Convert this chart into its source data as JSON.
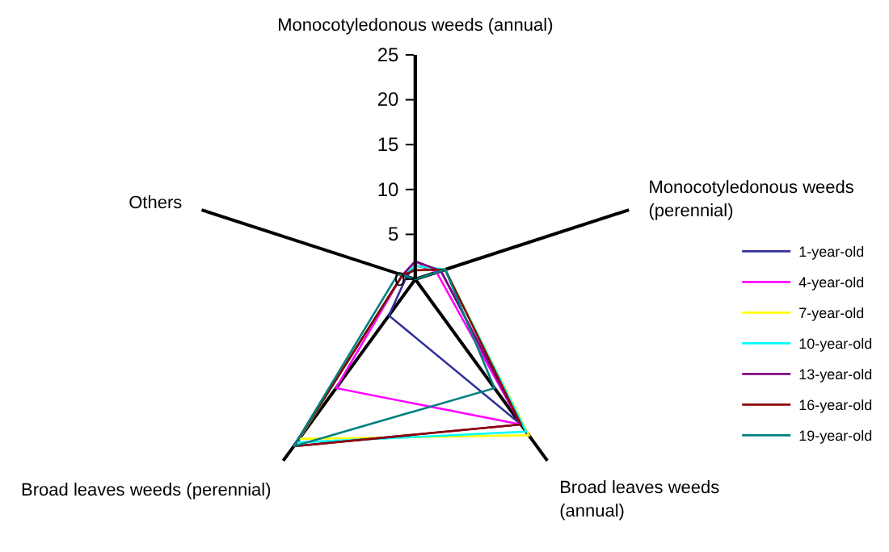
{
  "chart_data": {
    "type": "radar",
    "categories": [
      "Monocotyledonous weeds (annual)",
      "Monocotyledonous weeds (perennial)",
      "Broad leaves weeds (annual)",
      "Broad leaves weeds (perennial)",
      "Others"
    ],
    "ylim": [
      0,
      25
    ],
    "yticks": [
      0,
      5,
      10,
      15,
      20,
      25
    ],
    "legend": "right",
    "grid": false,
    "series": [
      {
        "name": "1-year-old",
        "color": "#333399",
        "values": [
          1.5,
          3,
          20,
          5,
          1
        ]
      },
      {
        "name": "4-year-old",
        "color": "#ff00ff",
        "values": [
          2,
          2.5,
          20,
          15,
          1.5
        ]
      },
      {
        "name": "7-year-old",
        "color": "#ffff00",
        "values": [
          1.5,
          3.5,
          21.5,
          22,
          1.5
        ]
      },
      {
        "name": "10-year-old",
        "color": "#00ffff",
        "values": [
          1.5,
          3.5,
          21,
          22.5,
          1.5
        ]
      },
      {
        "name": "13-year-old",
        "color": "#800080",
        "values": [
          2,
          3,
          20,
          23,
          1.5
        ]
      },
      {
        "name": "16-year-old",
        "color": "#8b0000",
        "values": [
          1,
          3.5,
          20,
          23,
          1.5
        ]
      },
      {
        "name": "19-year-old",
        "color": "#008080",
        "values": [
          0,
          3.5,
          15,
          23,
          2
        ]
      }
    ]
  }
}
